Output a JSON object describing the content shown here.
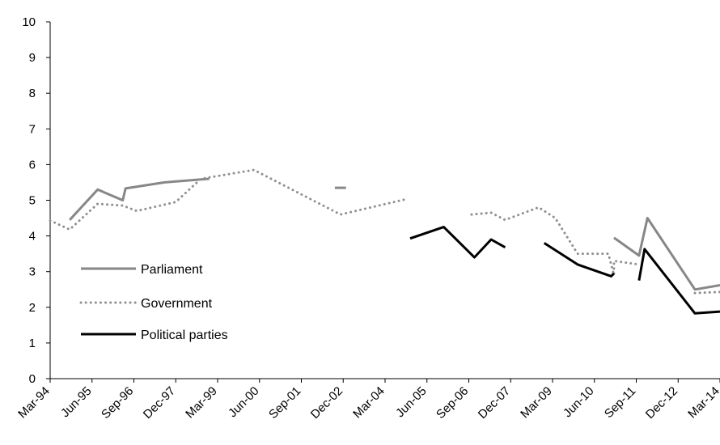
{
  "chart_data": {
    "type": "line",
    "title": "",
    "xlabel": "",
    "ylabel": "",
    "ylim": [
      0,
      10
    ],
    "yticks": [
      "0",
      "1",
      "2",
      "3",
      "4",
      "5",
      "6",
      "7",
      "8",
      "9",
      "10"
    ],
    "xticks": [
      "Mar-94",
      "Jun-95",
      "Sep-96",
      "Dec-97",
      "Mar-99",
      "Jun-00",
      "Sep-01",
      "Dec-02",
      "Mar-04",
      "Jun-05",
      "Sep-06",
      "Dec-07",
      "Mar-09",
      "Jun-10",
      "Sep-11",
      "Dec-12",
      "Mar-14"
    ],
    "x_domain": [
      "1994-03",
      "2014-03"
    ],
    "grid": false,
    "legend_position": "bottom-left",
    "series": [
      {
        "name": "Parliament",
        "color": "#878787",
        "style": "solid",
        "segments": [
          [
            [
              "1994-10",
              4.45
            ],
            [
              "1995-08",
              5.3
            ],
            [
              "1996-05",
              5.0
            ],
            [
              "1996-06",
              5.33
            ],
            [
              "1997-08",
              5.5
            ],
            [
              "1998-12",
              5.6
            ]
          ],
          [
            [
              "2002-09",
              5.35
            ],
            [
              "2003-01",
              5.35
            ]
          ],
          [
            [
              "2011-01",
              3.95
            ],
            [
              "2011-10",
              3.45
            ],
            [
              "2012-01",
              4.5
            ],
            [
              "2013-06",
              2.5
            ],
            [
              "2014-03",
              2.62
            ]
          ]
        ]
      },
      {
        "name": "Government",
        "color": "#909090",
        "style": "dotted",
        "segments": [
          [
            [
              "1994-03",
              4.43
            ],
            [
              "1994-10",
              4.18
            ],
            [
              "1995-08",
              4.9
            ],
            [
              "1996-05",
              4.85
            ],
            [
              "1996-10",
              4.7
            ],
            [
              "1997-12",
              4.95
            ],
            [
              "1998-09",
              5.6
            ],
            [
              "2000-04",
              5.85
            ],
            [
              "2002-11",
              4.6
            ],
            [
              "2004-10",
              5.02
            ]
          ],
          [
            [
              "2006-10",
              4.6
            ],
            [
              "2007-05",
              4.65
            ],
            [
              "2007-10",
              4.45
            ],
            [
              "2008-10",
              4.8
            ],
            [
              "2009-04",
              4.5
            ],
            [
              "2009-12",
              3.5
            ],
            [
              "2010-11",
              3.5
            ],
            [
              "2011-01",
              2.9
            ],
            [
              "2011-01",
              3.3
            ],
            [
              "2011-10",
              3.2
            ]
          ],
          [
            [
              "2013-06",
              2.4
            ],
            [
              "2014-03",
              2.43
            ]
          ]
        ]
      },
      {
        "name": "Political parties",
        "color": "#000000",
        "style": "solid",
        "segments": [
          [
            [
              "2004-12",
              3.93
            ],
            [
              "2005-12",
              4.25
            ],
            [
              "2006-11",
              3.4
            ],
            [
              "2007-05",
              3.9
            ],
            [
              "2007-10",
              3.68
            ]
          ],
          [
            [
              "2008-12",
              3.8
            ],
            [
              "2009-12",
              3.2
            ],
            [
              "2010-12",
              2.87
            ],
            [
              "2011-01",
              2.95
            ]
          ],
          [
            [
              "2011-10",
              2.75
            ],
            [
              "2011-12",
              3.63
            ],
            [
              "2013-06",
              1.83
            ],
            [
              "2014-03",
              1.88
            ]
          ]
        ]
      }
    ]
  }
}
